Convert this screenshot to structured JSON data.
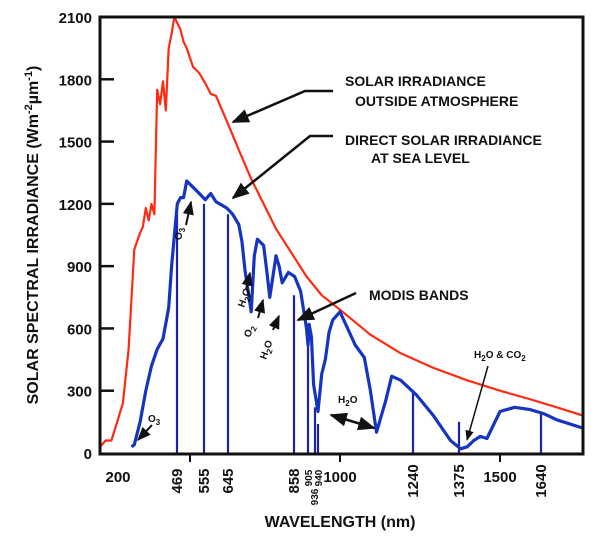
{
  "chart_data": {
    "type": "line",
    "title": "",
    "xlabel": "WAVELENGTH (nm)",
    "ylabel": "SOLAR SPECTRAL IRRADIANCE (Wm-2 µm-1)",
    "ylim": [
      0,
      2100
    ],
    "xlim": [
      200,
      1800
    ],
    "grid": false,
    "x_ticks": [
      "200",
      "469",
      "555",
      "645",
      "858",
      "905",
      "936",
      "940",
      "1000",
      "1240",
      "1375",
      "1500",
      "1640"
    ],
    "y_ticks": [
      "0",
      "300",
      "600",
      "900",
      "1200",
      "1500",
      "1800",
      "2100"
    ],
    "series": [
      {
        "name": "SOLAR IRRADIANCE OUTSIDE ATMOSPHERE",
        "color": "#ff2a10",
        "x": [
          200,
          220,
          240,
          260,
          280,
          300,
          320,
          340,
          350,
          360,
          370,
          380,
          390,
          400,
          410,
          420,
          430,
          440,
          450,
          460,
          470,
          480,
          490,
          500,
          520,
          540,
          560,
          580,
          600,
          640,
          680,
          720,
          760,
          800,
          860,
          900,
          950,
          1000,
          1100,
          1200,
          1300,
          1400,
          1500,
          1600,
          1700,
          1800
        ],
        "values": [
          30,
          60,
          60,
          150,
          240,
          500,
          980,
          1060,
          1090,
          1180,
          1120,
          1200,
          1150,
          1750,
          1680,
          1790,
          1650,
          1950,
          2020,
          2100,
          2070,
          2040,
          1980,
          1950,
          1860,
          1830,
          1780,
          1730,
          1720,
          1600,
          1460,
          1320,
          1200,
          1080,
          940,
          850,
          760,
          690,
          570,
          480,
          410,
          350,
          300,
          260,
          220,
          180
        ]
      },
      {
        "name": "DIRECT SOLAR IRRADIANCE AT SEA LEVEL",
        "color": "#1535c0",
        "x": [
          310,
          320,
          340,
          360,
          380,
          400,
          420,
          440,
          450,
          460,
          470,
          480,
          490,
          500,
          520,
          540,
          560,
          580,
          600,
          640,
          660,
          680,
          690,
          700,
          720,
          730,
          740,
          760,
          770,
          780,
          800,
          810,
          820,
          840,
          860,
          880,
          900,
          905,
          910,
          920,
          930,
          940,
          950,
          960,
          970,
          980,
          1000,
          1050,
          1080,
          1100,
          1120,
          1150,
          1170,
          1200,
          1250,
          1300,
          1350,
          1380,
          1400,
          1420,
          1440,
          1460,
          1500,
          1550,
          1600,
          1650,
          1700,
          1800
        ],
        "values": [
          30,
          40,
          150,
          300,
          420,
          500,
          550,
          700,
          900,
          1050,
          1200,
          1230,
          1230,
          1310,
          1280,
          1250,
          1220,
          1250,
          1210,
          1180,
          1150,
          1100,
          1020,
          880,
          680,
          950,
          1030,
          1000,
          880,
          750,
          950,
          900,
          820,
          870,
          850,
          780,
          600,
          520,
          620,
          560,
          330,
          200,
          380,
          450,
          580,
          640,
          680,
          520,
          460,
          300,
          100,
          250,
          370,
          350,
          280,
          180,
          60,
          20,
          30,
          60,
          80,
          70,
          200,
          220,
          210,
          190,
          160,
          120
        ]
      }
    ],
    "modis_bands": [
      {
        "x": 469,
        "top": 1200
      },
      {
        "x": 555,
        "top": 1200
      },
      {
        "x": 645,
        "top": 1150
      },
      {
        "x": 858,
        "top": 760
      },
      {
        "x": 905,
        "top": 530
      },
      {
        "x": 936,
        "top": 220
      },
      {
        "x": 940,
        "top": 140
      },
      {
        "x": 1240,
        "top": 300
      },
      {
        "x": 1375,
        "top": 150
      },
      {
        "x": 1640,
        "top": 190
      }
    ],
    "annotations": [
      {
        "id": "outside",
        "lines": [
          "SOLAR IRRADIANCE",
          "OUTSIDE ATMOSPHERE"
        ]
      },
      {
        "id": "sealevel",
        "lines": [
          "DIRECT SOLAR IRRADIANCE",
          "AT SEA LEVEL"
        ]
      },
      {
        "id": "modis",
        "lines": [
          "MODIS BANDS"
        ]
      },
      {
        "id": "o3_low",
        "text": "O3"
      },
      {
        "id": "o3_high",
        "text": "O3"
      },
      {
        "id": "h2o_a",
        "text": "H2O"
      },
      {
        "id": "o2",
        "text": "O2"
      },
      {
        "id": "h2o_b",
        "text": "H2O"
      },
      {
        "id": "h2o_c",
        "text": "H2O"
      },
      {
        "id": "h2o_co2",
        "text": "H2O & CO2"
      }
    ]
  }
}
